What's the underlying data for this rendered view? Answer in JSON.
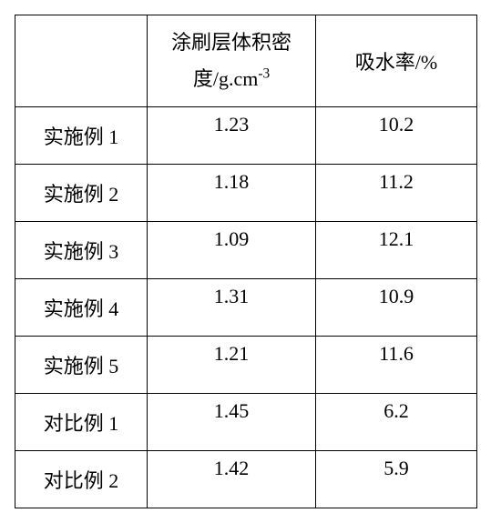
{
  "table": {
    "columns": [
      {
        "label": ""
      },
      {
        "label_line1": "涂刷层体积密",
        "label_line2": "度/g.cm",
        "label_sup": "-3"
      },
      {
        "label": "吸水率/%"
      }
    ],
    "rows": [
      {
        "label": "实施例 1",
        "density": "1.23",
        "absorb": "10.2"
      },
      {
        "label": "实施例 2",
        "density": "1.18",
        "absorb": "11.2"
      },
      {
        "label": "实施例 3",
        "density": "1.09",
        "absorb": "12.1"
      },
      {
        "label": "实施例 4",
        "density": "1.31",
        "absorb": "10.9"
      },
      {
        "label": "实施例 5",
        "density": "1.21",
        "absorb": "11.6"
      },
      {
        "label": "对比例 1",
        "density": "1.45",
        "absorb": "6.2"
      },
      {
        "label": "对比例 2",
        "density": "1.42",
        "absorb": "5.9"
      }
    ]
  }
}
